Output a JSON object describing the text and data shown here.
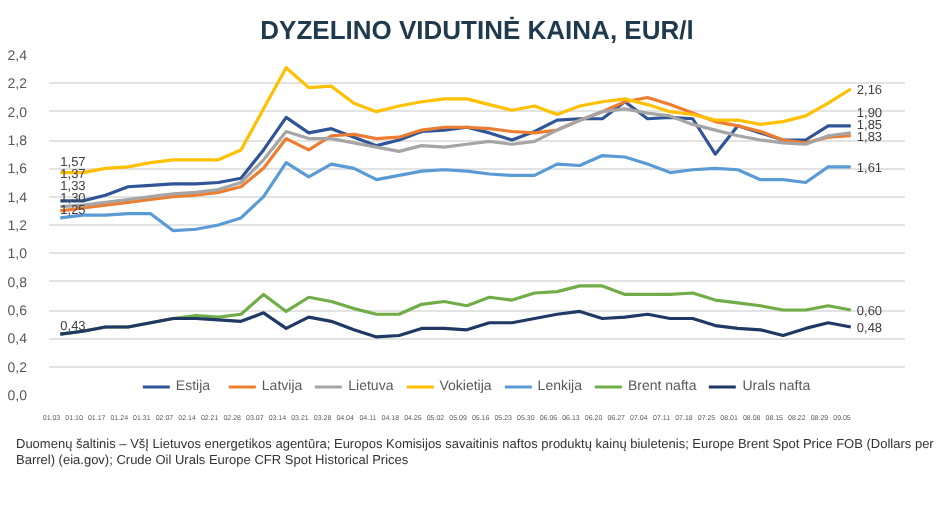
{
  "chart_data": {
    "type": "line",
    "title": "DYZELINO VIDUTINĖ KAINA, EUR/l",
    "categories": [
      "01.03",
      "01.10",
      "01.17",
      "01.24",
      "01.31",
      "02.07",
      "02.14",
      "02.21",
      "02.28",
      "03.07",
      "03.14",
      "03.21",
      "03.28",
      "04.04",
      "04.11",
      "04.18",
      "04.25",
      "05.02",
      "05.09",
      "05.16",
      "05.23",
      "05.30",
      "06.06",
      "06.13",
      "06.20",
      "06.27",
      "07.04",
      "07.11",
      "07.18",
      "07.25",
      "08.01",
      "08.08",
      "08.15",
      "08.22",
      "08.29",
      "09.05"
    ],
    "series": [
      {
        "name": "Estija",
        "color": "#2f5597",
        "values": [
          1.37,
          1.37,
          1.41,
          1.47,
          1.48,
          1.49,
          1.49,
          1.5,
          1.53,
          1.73,
          1.96,
          1.85,
          1.88,
          1.82,
          1.76,
          1.8,
          1.86,
          1.87,
          1.89,
          1.85,
          1.8,
          1.86,
          1.94,
          1.95,
          1.95,
          2.07,
          1.95,
          1.96,
          1.95,
          1.7,
          1.9,
          1.85,
          1.8,
          1.8,
          1.9,
          1.9
        ],
        "value_labels": [
          "1,37",
          null,
          null,
          null,
          null,
          null,
          null,
          null,
          null,
          null,
          null,
          null,
          null,
          null,
          null,
          null,
          null,
          null,
          null,
          null,
          null,
          null,
          null,
          null,
          null,
          null,
          null,
          null,
          null,
          null,
          null,
          null,
          null,
          null,
          null,
          "1,90"
        ]
      },
      {
        "name": "Latvija",
        "color": "#ed7d31",
        "values": [
          1.3,
          1.32,
          1.34,
          1.36,
          1.38,
          1.4,
          1.41,
          1.43,
          1.47,
          1.6,
          1.81,
          1.73,
          1.83,
          1.84,
          1.81,
          1.82,
          1.87,
          1.89,
          1.89,
          1.88,
          1.86,
          1.85,
          1.87,
          1.94,
          2.0,
          2.07,
          2.1,
          2.05,
          1.99,
          1.93,
          1.9,
          1.86,
          1.8,
          1.78,
          1.82,
          1.83
        ],
        "value_labels": [
          "1,30",
          null,
          null,
          null,
          null,
          null,
          null,
          null,
          null,
          null,
          null,
          null,
          null,
          null,
          null,
          null,
          null,
          null,
          null,
          null,
          null,
          null,
          null,
          null,
          null,
          null,
          null,
          null,
          null,
          null,
          null,
          null,
          null,
          null,
          null,
          "1,83"
        ]
      },
      {
        "name": "Lietuva",
        "color": "#a5a5a5",
        "values": [
          1.33,
          1.34,
          1.36,
          1.38,
          1.4,
          1.42,
          1.43,
          1.45,
          1.5,
          1.66,
          1.86,
          1.81,
          1.81,
          1.78,
          1.75,
          1.72,
          1.76,
          1.75,
          1.77,
          1.79,
          1.77,
          1.79,
          1.87,
          1.94,
          2.0,
          2.02,
          1.99,
          1.97,
          1.91,
          1.87,
          1.83,
          1.8,
          1.78,
          1.77,
          1.83,
          1.85
        ],
        "value_labels": [
          "1,33",
          null,
          null,
          null,
          null,
          null,
          null,
          null,
          null,
          null,
          null,
          null,
          null,
          null,
          null,
          null,
          null,
          null,
          null,
          null,
          null,
          null,
          null,
          null,
          null,
          null,
          null,
          null,
          null,
          null,
          null,
          null,
          null,
          null,
          null,
          "1,85"
        ]
      },
      {
        "name": "Vokietija",
        "color": "#ffc000",
        "values": [
          1.57,
          1.57,
          1.6,
          1.61,
          1.64,
          1.66,
          1.66,
          1.66,
          1.73,
          2.02,
          2.31,
          2.17,
          2.18,
          2.06,
          2.0,
          2.04,
          2.07,
          2.09,
          2.09,
          2.05,
          2.01,
          2.04,
          1.98,
          2.04,
          2.07,
          2.09,
          2.05,
          2.0,
          1.98,
          1.94,
          1.94,
          1.91,
          1.93,
          1.97,
          2.06,
          2.16
        ],
        "value_labels": [
          "1,57",
          null,
          null,
          null,
          null,
          null,
          null,
          null,
          null,
          null,
          null,
          null,
          null,
          null,
          null,
          null,
          null,
          null,
          null,
          null,
          null,
          null,
          null,
          null,
          null,
          null,
          null,
          null,
          null,
          null,
          null,
          null,
          null,
          null,
          null,
          "2,16"
        ]
      },
      {
        "name": "Lenkija",
        "color": "#5b9bd5",
        "values": [
          1.25,
          1.27,
          1.27,
          1.28,
          1.28,
          1.16,
          1.17,
          1.2,
          1.25,
          1.4,
          1.64,
          1.54,
          1.63,
          1.6,
          1.52,
          1.55,
          1.58,
          1.59,
          1.58,
          1.56,
          1.55,
          1.55,
          1.63,
          1.62,
          1.69,
          1.68,
          1.63,
          1.57,
          1.59,
          1.6,
          1.59,
          1.52,
          1.52,
          1.5,
          1.61,
          1.61
        ],
        "value_labels": [
          "1,25",
          null,
          null,
          null,
          null,
          null,
          null,
          null,
          null,
          null,
          null,
          null,
          null,
          null,
          null,
          null,
          null,
          null,
          null,
          null,
          null,
          null,
          null,
          null,
          null,
          null,
          null,
          null,
          null,
          null,
          null,
          null,
          null,
          null,
          null,
          "1,61"
        ]
      },
      {
        "name": "Brent nafta",
        "color": "#70ad47",
        "values": [
          0.43,
          0.45,
          0.48,
          0.48,
          0.51,
          0.54,
          0.56,
          0.55,
          0.57,
          0.71,
          0.59,
          0.69,
          0.66,
          0.61,
          0.57,
          0.57,
          0.64,
          0.66,
          0.63,
          0.69,
          0.67,
          0.72,
          0.73,
          0.77,
          0.77,
          0.71,
          0.71,
          0.71,
          0.72,
          0.67,
          0.65,
          0.63,
          0.6,
          0.6,
          0.63,
          0.6
        ],
        "value_labels": [
          null,
          null,
          null,
          null,
          null,
          null,
          null,
          null,
          null,
          null,
          null,
          null,
          null,
          null,
          null,
          null,
          null,
          null,
          null,
          null,
          null,
          null,
          null,
          null,
          null,
          null,
          null,
          null,
          null,
          null,
          null,
          null,
          null,
          null,
          null,
          "0,60"
        ]
      },
      {
        "name": "Urals nafta",
        "color": "#203864",
        "values": [
          0.43,
          0.45,
          0.48,
          0.48,
          0.51,
          0.54,
          0.54,
          0.53,
          0.52,
          0.58,
          0.47,
          0.55,
          0.52,
          0.46,
          0.41,
          0.42,
          0.47,
          0.47,
          0.46,
          0.51,
          0.51,
          0.54,
          0.57,
          0.59,
          0.54,
          0.55,
          0.57,
          0.54,
          0.54,
          0.49,
          0.47,
          0.46,
          0.42,
          0.47,
          0.51,
          0.48
        ],
        "value_labels": [
          "0,43",
          null,
          null,
          null,
          null,
          null,
          null,
          null,
          null,
          null,
          null,
          null,
          null,
          null,
          null,
          null,
          null,
          null,
          null,
          null,
          null,
          null,
          null,
          null,
          null,
          null,
          null,
          null,
          null,
          null,
          null,
          null,
          null,
          null,
          null,
          "0,48"
        ]
      }
    ],
    "ylim": [
      0,
      2.4
    ],
    "yticks": [
      {
        "value": 0,
        "label": "0,0"
      },
      {
        "value": 0.2,
        "label": "0,2"
      },
      {
        "value": 0.4,
        "label": "0,4"
      },
      {
        "value": 0.6,
        "label": "0,6"
      },
      {
        "value": 0.8,
        "label": "0,8"
      },
      {
        "value": 1.0,
        "label": "1,0"
      },
      {
        "value": 1.2,
        "label": "1,2"
      },
      {
        "value": 1.4,
        "label": "1,4"
      },
      {
        "value": 1.6,
        "label": "1,6"
      },
      {
        "value": 1.8,
        "label": "1,8"
      },
      {
        "value": 2.0,
        "label": "2,0"
      },
      {
        "value": 2.2,
        "label": "2,2"
      },
      {
        "value": 2.4,
        "label": "2,4"
      }
    ],
    "grid": "y",
    "legend": "bottom",
    "marker": "none",
    "line_style": "solid",
    "annotations": [
      "Duomenų šaltinis – VšĮ Lietuvos energetikos agentūra; Europos Komisijos savaitinis naftos produktų kainų biuletenis; Europe Brent Spot Price FOB (Dollars per Barrel) (eia.gov); Crude Oil Urals Europe CFR Spot Historical Prices"
    ]
  }
}
